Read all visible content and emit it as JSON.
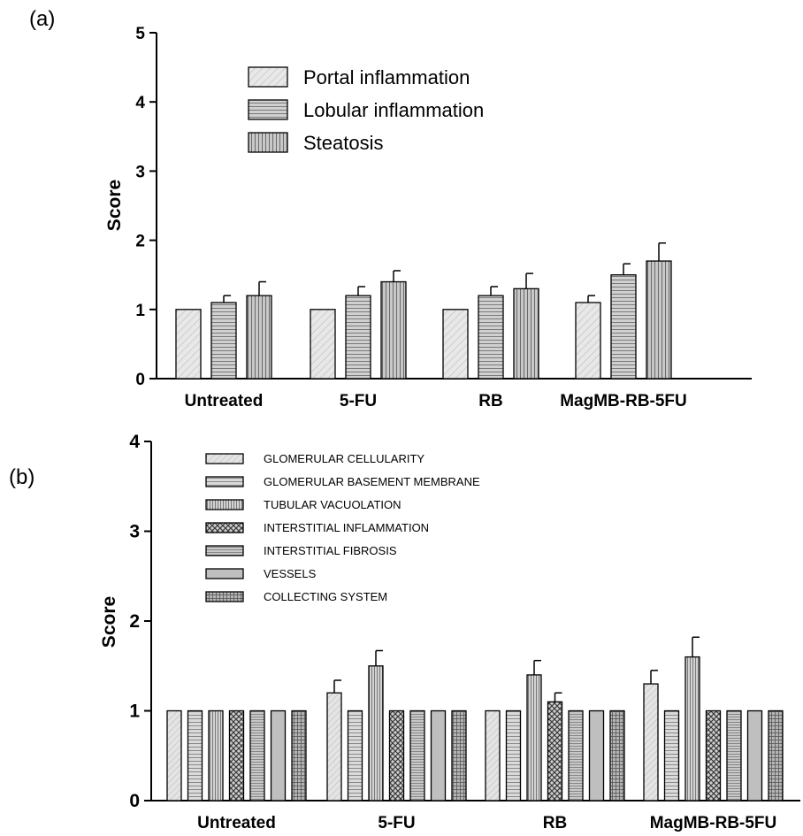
{
  "panels": [
    {
      "label": "(a)"
    },
    {
      "label": "(b)"
    }
  ],
  "chart_data": [
    {
      "type": "bar",
      "panel": "(a)",
      "ylabel": "Score",
      "xlabel": "",
      "ylim": [
        0,
        5
      ],
      "yticks": [
        0,
        1,
        2,
        3,
        4,
        5
      ],
      "categories": [
        "Untreated",
        "5-FU",
        "RB",
        "MagMB-RB-5FU"
      ],
      "series": [
        {
          "name": "Portal inflammation",
          "values": [
            1.0,
            1.0,
            1.0,
            1.1
          ],
          "errors": [
            0,
            0,
            0,
            0.1
          ]
        },
        {
          "name": "Lobular inflammation",
          "values": [
            1.1,
            1.2,
            1.2,
            1.5
          ],
          "errors": [
            0.1,
            0.13,
            0.13,
            0.16
          ]
        },
        {
          "name": "Steatosis",
          "values": [
            1.2,
            1.4,
            1.3,
            1.7
          ],
          "errors": [
            0.2,
            0.16,
            0.22,
            0.26
          ]
        }
      ],
      "error_bars": true,
      "legend_position": "top-left"
    },
    {
      "type": "bar",
      "panel": "(b)",
      "ylabel": "Score",
      "xlabel": "",
      "ylim": [
        0,
        4
      ],
      "yticks": [
        0,
        1,
        2,
        3,
        4
      ],
      "categories": [
        "Untreated",
        "5-FU",
        "RB",
        "MagMB-RB-5FU"
      ],
      "series": [
        {
          "name": "GLOMERULAR CELLULARITY",
          "values": [
            1.0,
            1.2,
            1.0,
            1.3
          ],
          "errors": [
            0,
            0.14,
            0,
            0.15
          ]
        },
        {
          "name": "GLOMERULAR BASEMENT MEMBRANE",
          "values": [
            1.0,
            1.0,
            1.0,
            1.0
          ],
          "errors": [
            0,
            0,
            0,
            0
          ]
        },
        {
          "name": "TUBULAR VACUOLATION",
          "values": [
            1.0,
            1.5,
            1.4,
            1.6
          ],
          "errors": [
            0,
            0.17,
            0.16,
            0.22
          ]
        },
        {
          "name": "INTERSTITIAL INFLAMMATION",
          "values": [
            1.0,
            1.0,
            1.1,
            1.0
          ],
          "errors": [
            0,
            0,
            0.1,
            0
          ]
        },
        {
          "name": "INTERSTITIAL  FIBROSIS",
          "values": [
            1.0,
            1.0,
            1.0,
            1.0
          ],
          "errors": [
            0,
            0,
            0,
            0
          ]
        },
        {
          "name": "VESSELS",
          "values": [
            1.0,
            1.0,
            1.0,
            1.0
          ],
          "errors": [
            0,
            0,
            0,
            0
          ]
        },
        {
          "name": "COLLECTING SYSTEM",
          "values": [
            1.0,
            1.0,
            1.0,
            1.0
          ],
          "errors": [
            0,
            0,
            0,
            0
          ]
        }
      ],
      "error_bars": true,
      "legend_position": "top-left"
    }
  ]
}
